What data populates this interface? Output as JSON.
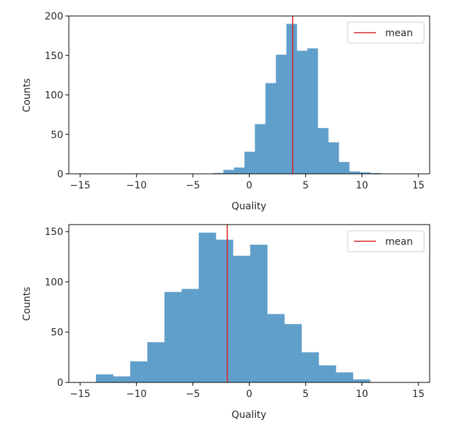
{
  "chart_data": [
    {
      "type": "bar",
      "title": "",
      "xlabel": "Quality",
      "ylabel": "Counts",
      "xlim": [
        -16,
        16
      ],
      "ylim": [
        0,
        200
      ],
      "xticks": [
        -15,
        -10,
        -5,
        0,
        5,
        10,
        15
      ],
      "yticks": [
        0,
        50,
        100,
        150,
        200
      ],
      "xtick_labels": [
        "−15",
        "−10",
        "−5",
        "0",
        "5",
        "10",
        "15"
      ],
      "ytick_labels": [
        "0",
        "50",
        "100",
        "150",
        "200"
      ],
      "bin_width": 0.93,
      "bin_left_edges": [
        -3.22,
        -2.29,
        -1.36,
        -0.43,
        0.5,
        1.43,
        2.36,
        3.29,
        4.22,
        5.15,
        6.08,
        7.01,
        7.94,
        8.87,
        9.8,
        10.73
      ],
      "counts": [
        1,
        5,
        8,
        28,
        63,
        115,
        151,
        190,
        156,
        159,
        58,
        40,
        15,
        3,
        2,
        1
      ],
      "series": [
        {
          "name": "mean",
          "x": 3.85
        }
      ],
      "bar_color": "#619fcb",
      "mean_color": "#d62728",
      "legend": "top-right",
      "grid": false
    },
    {
      "type": "bar",
      "title": "",
      "xlabel": "Quality",
      "ylabel": "Counts",
      "xlim": [
        -16,
        16
      ],
      "ylim": [
        0,
        157
      ],
      "xticks": [
        -15,
        -10,
        -5,
        0,
        5,
        10,
        15
      ],
      "yticks": [
        0,
        50,
        100,
        150
      ],
      "xtick_labels": [
        "−15",
        "−10",
        "−5",
        "0",
        "5",
        "10",
        "15"
      ],
      "ytick_labels": [
        "0",
        "50",
        "100",
        "150"
      ],
      "bin_width": 1.52,
      "bin_left_edges": [
        -13.6,
        -12.08,
        -10.56,
        -9.04,
        -7.52,
        -6.0,
        -4.48,
        -2.96,
        -1.44,
        0.08,
        1.6,
        3.12,
        4.64,
        6.16,
        7.68,
        9.2
      ],
      "counts": [
        8,
        6,
        21,
        40,
        90,
        93,
        149,
        142,
        126,
        137,
        68,
        58,
        30,
        17,
        10,
        3
      ],
      "series": [
        {
          "name": "mean",
          "x": -1.95
        }
      ],
      "bar_color": "#619fcb",
      "mean_color": "#d62728",
      "legend": "top-right",
      "grid": false
    }
  ]
}
